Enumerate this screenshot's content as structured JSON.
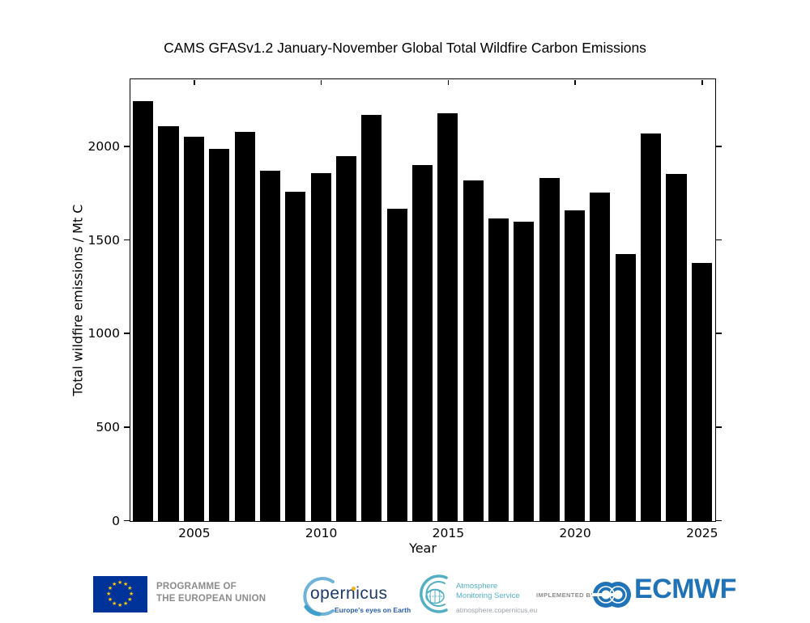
{
  "chart_data": {
    "type": "bar",
    "title": "CAMS GFASv1.2 January-November Global Total Wildfire Carbon Emissions",
    "xlabel": "Year",
    "ylabel": "Total wildfire emissions / Mt C",
    "categories": [
      2003,
      2004,
      2005,
      2006,
      2007,
      2008,
      2009,
      2010,
      2011,
      2012,
      2013,
      2014,
      2015,
      2016,
      2017,
      2018,
      2019,
      2020,
      2021,
      2022,
      2023,
      2024,
      2025
    ],
    "values": [
      2245,
      2110,
      2055,
      1990,
      2080,
      1870,
      1760,
      1860,
      1950,
      2170,
      1670,
      1900,
      2180,
      1820,
      1615,
      1600,
      1835,
      1660,
      1755,
      1425,
      2070,
      1855,
      1380
    ],
    "ylim": [
      0,
      2356
    ],
    "yticks": [
      0,
      500,
      1000,
      1500,
      2000
    ],
    "xticks": [
      2005,
      2010,
      2015,
      2020,
      2025
    ],
    "bar_color": "#000000",
    "grid": false,
    "legend": false
  },
  "footer": {
    "eu_programme_line1": "PROGRAMME OF",
    "eu_programme_line2": "THE EUROPEAN UNION",
    "copernicus_wordmark": "opernicus",
    "copernicus_tagline": "Europe's eyes on Earth",
    "ams_line1": "Atmosphere",
    "ams_line2": "Monitoring Service",
    "ams_url": "atmosphere.copernicus.eu",
    "implemented_by": "IMPLEMENTED BY",
    "ecmwf_name": "ECMWF",
    "colors": {
      "eu_blue": "#003399",
      "eu_star_yellow": "#FFCC00",
      "eu_text_gray": "#8c8c8c",
      "copernicus_dark_blue": "#1d3a6b",
      "copernicus_light_blue": "#6fb4d8",
      "copernicus_yellow": "#f0b317",
      "ams_teal": "#54afc3",
      "url_gray": "#9aa0a8",
      "ecmwf_blue": "#2173b7"
    }
  }
}
